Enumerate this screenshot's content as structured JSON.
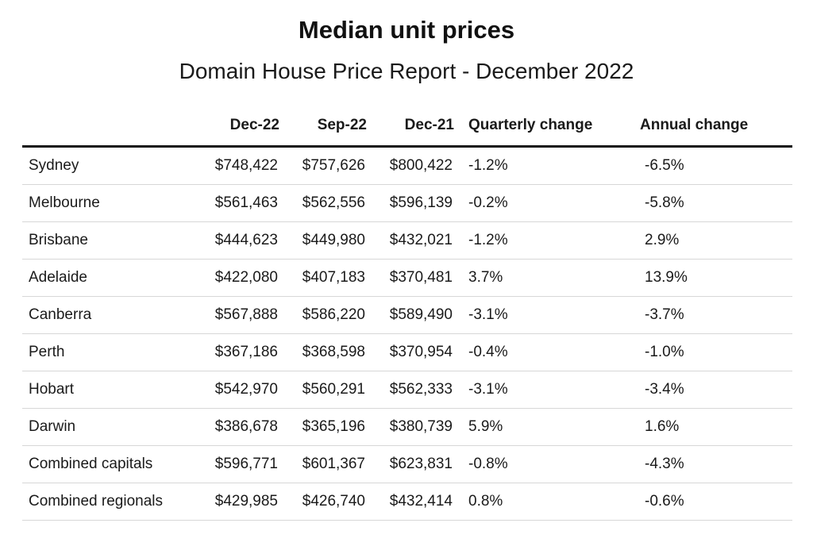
{
  "chart_data": {
    "type": "table",
    "title": "Median unit prices",
    "subtitle": "Domain House Price Report - December 2022",
    "columns": [
      "",
      "Dec-22",
      "Sep-22",
      "Dec-21",
      "Quarterly change",
      "Annual change"
    ],
    "rows": [
      [
        "Sydney",
        "$748,422",
        "$757,626",
        "$800,422",
        "-1.2%",
        "-6.5%"
      ],
      [
        "Melbourne",
        "$561,463",
        "$562,556",
        "$596,139",
        "-0.2%",
        "-5.8%"
      ],
      [
        "Brisbane",
        "$444,623",
        "$449,980",
        "$432,021",
        "-1.2%",
        "2.9%"
      ],
      [
        "Adelaide",
        "$422,080",
        "$407,183",
        "$370,481",
        "3.7%",
        "13.9%"
      ],
      [
        "Canberra",
        "$567,888",
        "$586,220",
        "$589,490",
        "-3.1%",
        "-3.7%"
      ],
      [
        "Perth",
        "$367,186",
        "$368,598",
        "$370,954",
        "-0.4%",
        "-1.0%"
      ],
      [
        "Hobart",
        "$542,970",
        "$560,291",
        "$562,333",
        "-3.1%",
        "-3.4%"
      ],
      [
        "Darwin",
        "$386,678",
        "$365,196",
        "$380,739",
        "5.9%",
        "1.6%"
      ],
      [
        "Combined capitals",
        "$596,771",
        "$601,367",
        "$623,831",
        "-0.8%",
        "-4.3%"
      ],
      [
        "Combined regionals",
        "$429,985",
        "$426,740",
        "$432,414",
        "0.8%",
        "-0.6%"
      ]
    ]
  }
}
